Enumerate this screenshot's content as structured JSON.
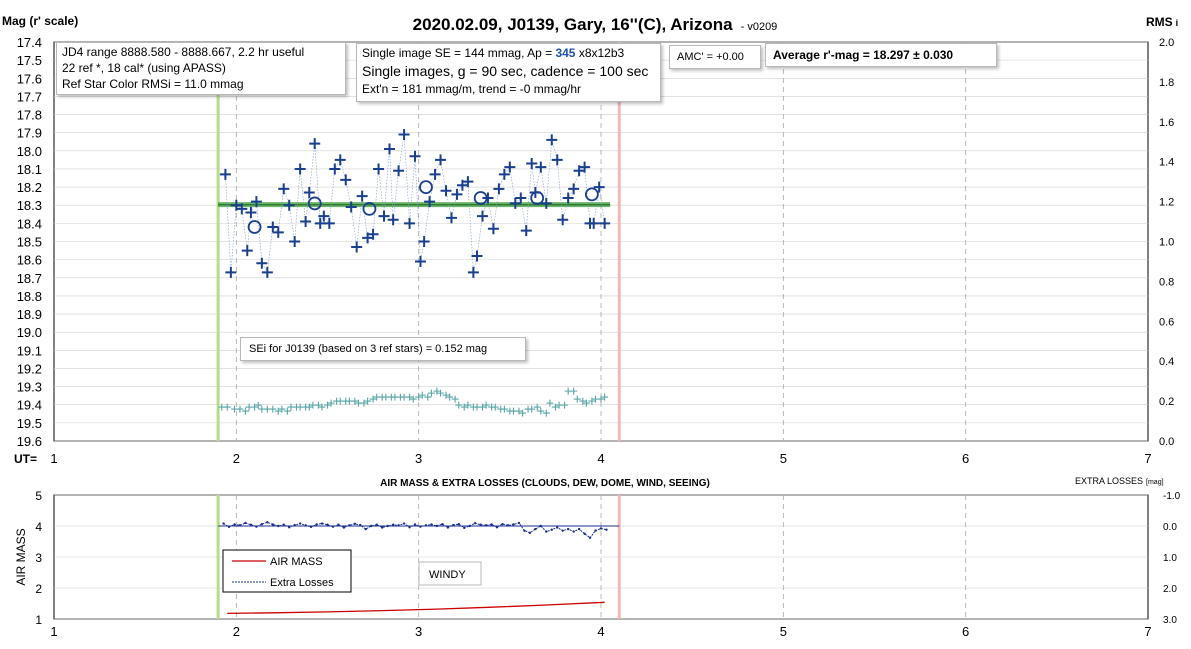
{
  "title": "2020.02.09, J0139, Gary, 16''(C), Arizona",
  "version": "- v0209",
  "left_axis_title": "Mag (r' scale)",
  "right_axis_title": "RMS",
  "right_axis_title_sub": "i",
  "ut_label": "UT=",
  "colors": {
    "mag_marker": "#1a3f8f",
    "avg_line": "#3a9a3a",
    "rms_marker": "#5aa6a8",
    "start_line": "#b8dc8c",
    "end_line": "#f4b6b6",
    "airmass_line": "#cc0000",
    "extra_loss_line": "#1a2f8f"
  },
  "info_boxes": {
    "jd_range": "JD4 range 8888.580 - 8888.667, 2.2 hr useful",
    "refs": "22 ref *, 18 cal* (using APASS)",
    "ref_color_rms": "Ref Star Color RMSi = 11.0 mmag",
    "se_prefix": "Single image SE = 144 mmag, Ap = ",
    "ap_value": "345",
    "ap_suffix": " x8x12b3",
    "single_images": "Single images, g = 90 sec, cadence = 100 sec",
    "extn": "Ext'n = 181 mmag/m, trend = -0 mmag/hr",
    "amc": "AMC' = +0.00",
    "average": "Average r'-mag =  18.297 ± 0.030",
    "sei": "SEi for J0139 (based on 3 ref stars) = 0.152 mag"
  },
  "bottom_panel": {
    "title": "AIR MASS & EXTRA LOSSES (CLOUDS, DEW, DOME, WIND, SEEING)",
    "left_axis_title": "AIR MASS",
    "right_axis_title": "EXTRA LOSSES",
    "right_axis_unit": "[mag]",
    "legend_airmass": "AIR MASS",
    "legend_extra": "Extra Losses",
    "windy": "WINDY"
  },
  "chart_data": [
    {
      "type": "scatter",
      "xlim": [
        1,
        7
      ],
      "ylim_left": [
        17.4,
        19.6
      ],
      "ylim_right": [
        0.0,
        2.0
      ],
      "x_ticks": [
        "1",
        "2",
        "3",
        "4",
        "5",
        "6",
        "7"
      ],
      "y_ticks_left": [
        "17.4",
        "17.5",
        "17.6",
        "17.7",
        "17.8",
        "17.9",
        "18.0",
        "18.1",
        "18.2",
        "18.3",
        "18.4",
        "18.5",
        "18.6",
        "18.7",
        "18.8",
        "18.9",
        "19.0",
        "19.1",
        "19.2",
        "19.3",
        "19.4",
        "19.5",
        "19.6"
      ],
      "y_ticks_right": [
        "2.0",
        "1.8",
        "1.6",
        "1.4",
        "1.2",
        "1.0",
        "0.8",
        "0.6",
        "0.4",
        "0.2",
        "0.0"
      ],
      "grid": true,
      "start_ut": 1.9,
      "end_ut": 4.1,
      "average_mag": 18.297,
      "average_ut_range": [
        1.9,
        4.05
      ],
      "single_mags": {
        "x": [
          1.94,
          1.97,
          2.0,
          2.03,
          2.06,
          2.08,
          2.11,
          2.14,
          2.17,
          2.2,
          2.23,
          2.26,
          2.29,
          2.32,
          2.35,
          2.38,
          2.4,
          2.43,
          2.46,
          2.48,
          2.51,
          2.54,
          2.57,
          2.6,
          2.63,
          2.66,
          2.69,
          2.72,
          2.75,
          2.78,
          2.81,
          2.84,
          2.86,
          2.89,
          2.92,
          2.95,
          2.98,
          3.01,
          3.03,
          3.06,
          3.09,
          3.12,
          3.15,
          3.18,
          3.21,
          3.24,
          3.27,
          3.3,
          3.32,
          3.35,
          3.38,
          3.41,
          3.44,
          3.47,
          3.5,
          3.53,
          3.56,
          3.59,
          3.62,
          3.64,
          3.67,
          3.7,
          3.73,
          3.76,
          3.79,
          3.82,
          3.85,
          3.88,
          3.91,
          3.94,
          3.96,
          3.99,
          4.02
        ],
        "mag": [
          18.13,
          18.67,
          18.3,
          18.32,
          18.55,
          18.34,
          18.28,
          18.62,
          18.67,
          18.42,
          18.45,
          18.21,
          18.3,
          18.5,
          18.1,
          18.39,
          18.23,
          17.96,
          18.4,
          18.36,
          18.4,
          18.1,
          18.05,
          18.16,
          18.31,
          18.53,
          18.25,
          18.48,
          18.46,
          18.1,
          18.36,
          17.99,
          18.38,
          18.11,
          17.91,
          18.4,
          18.03,
          18.61,
          18.5,
          18.28,
          18.13,
          18.05,
          18.22,
          18.37,
          18.24,
          18.19,
          18.17,
          18.67,
          18.58,
          18.36,
          18.26,
          18.43,
          18.21,
          18.13,
          18.09,
          18.29,
          18.26,
          18.44,
          18.07,
          18.23,
          18.09,
          18.29,
          17.94,
          18.05,
          18.38,
          18.26,
          18.21,
          18.11,
          18.09,
          18.4,
          18.4,
          18.2,
          18.4
        ]
      },
      "group_means": {
        "x": [
          2.1,
          2.43,
          2.73,
          3.04,
          3.34,
          3.65,
          3.95
        ],
        "mag": [
          18.42,
          18.29,
          18.32,
          18.2,
          18.26,
          18.26,
          18.24
        ]
      },
      "rms_i": {
        "x": [
          1.92,
          1.95,
          1.99,
          2.02,
          2.05,
          2.07,
          2.1,
          2.12,
          2.14,
          2.17,
          2.2,
          2.23,
          2.25,
          2.28,
          2.3,
          2.33,
          2.35,
          2.38,
          2.4,
          2.42,
          2.45,
          2.47,
          2.5,
          2.52,
          2.55,
          2.57,
          2.6,
          2.62,
          2.65,
          2.67,
          2.7,
          2.72,
          2.75,
          2.77,
          2.8,
          2.82,
          2.85,
          2.87,
          2.9,
          2.92,
          2.95,
          2.97,
          3.0,
          3.02,
          3.05,
          3.07,
          3.1,
          3.12,
          3.15,
          3.17,
          3.2,
          3.22,
          3.25,
          3.27,
          3.3,
          3.32,
          3.35,
          3.37,
          3.4,
          3.42,
          3.45,
          3.47,
          3.5,
          3.52,
          3.55,
          3.57,
          3.6,
          3.62,
          3.65,
          3.67,
          3.7,
          3.72,
          3.75,
          3.77,
          3.8,
          3.82,
          3.85,
          3.87,
          3.9,
          3.92,
          3.95,
          3.97,
          4.0,
          4.02
        ],
        "rms": [
          0.17,
          0.17,
          0.16,
          0.16,
          0.15,
          0.17,
          0.17,
          0.18,
          0.16,
          0.16,
          0.16,
          0.15,
          0.16,
          0.15,
          0.17,
          0.17,
          0.17,
          0.17,
          0.17,
          0.18,
          0.18,
          0.17,
          0.18,
          0.19,
          0.2,
          0.2,
          0.2,
          0.2,
          0.2,
          0.19,
          0.19,
          0.2,
          0.21,
          0.22,
          0.22,
          0.22,
          0.22,
          0.22,
          0.22,
          0.22,
          0.22,
          0.21,
          0.22,
          0.23,
          0.22,
          0.24,
          0.25,
          0.24,
          0.23,
          0.22,
          0.21,
          0.18,
          0.17,
          0.18,
          0.17,
          0.17,
          0.17,
          0.18,
          0.17,
          0.17,
          0.16,
          0.16,
          0.15,
          0.15,
          0.15,
          0.14,
          0.16,
          0.16,
          0.17,
          0.15,
          0.14,
          0.19,
          0.17,
          0.18,
          0.18,
          0.25,
          0.25,
          0.21,
          0.2,
          0.19,
          0.2,
          0.21,
          0.21,
          0.22
        ]
      }
    },
    {
      "type": "line",
      "xlim": [
        1,
        7
      ],
      "ylim_left": [
        1,
        5
      ],
      "ylim_right": [
        3.0,
        -1.0
      ],
      "x_ticks": [
        "1",
        "2",
        "3",
        "4",
        "5",
        "6",
        "7"
      ],
      "y_ticks_left": [
        "5",
        "4",
        "3",
        "2",
        "1"
      ],
      "y_ticks_right": [
        "-1.0",
        "0.0",
        "1.0",
        "2.0",
        "3.0"
      ],
      "grid": true,
      "series": [
        {
          "name": "AIR MASS",
          "x": [
            1.95,
            2.2,
            2.5,
            2.8,
            3.1,
            3.4,
            3.7,
            4.02
          ],
          "values": [
            1.18,
            1.2,
            1.23,
            1.27,
            1.32,
            1.38,
            1.45,
            1.54
          ]
        },
        {
          "name": "Extra Losses",
          "x": [
            1.93,
            1.96,
            1.99,
            2.02,
            2.05,
            2.08,
            2.11,
            2.14,
            2.17,
            2.2,
            2.23,
            2.26,
            2.29,
            2.32,
            2.35,
            2.38,
            2.41,
            2.44,
            2.47,
            2.5,
            2.53,
            2.56,
            2.59,
            2.62,
            2.65,
            2.68,
            2.71,
            2.74,
            2.77,
            2.8,
            2.83,
            2.86,
            2.89,
            2.92,
            2.95,
            2.98,
            3.01,
            3.04,
            3.07,
            3.1,
            3.13,
            3.16,
            3.19,
            3.22,
            3.25,
            3.28,
            3.31,
            3.34,
            3.37,
            3.4,
            3.43,
            3.46,
            3.49,
            3.52,
            3.55,
            3.58,
            3.61,
            3.64,
            3.67,
            3.7,
            3.73,
            3.76,
            3.79,
            3.82,
            3.85,
            3.88,
            3.91,
            3.94,
            3.97,
            4.0,
            4.03
          ],
          "values": [
            -0.08,
            0.03,
            -0.05,
            -0.02,
            -0.1,
            -0.04,
            0.02,
            -0.06,
            -0.12,
            -0.05,
            0.0,
            -0.04,
            0.04,
            -0.03,
            -0.08,
            -0.02,
            0.03,
            -0.05,
            -0.08,
            -0.04,
            0.02,
            -0.04,
            0.05,
            -0.02,
            -0.07,
            -0.03,
            0.1,
            0.0,
            -0.04,
            0.05,
            0.0,
            -0.04,
            -0.02,
            -0.08,
            0.04,
            -0.05,
            0.02,
            -0.02,
            -0.05,
            0.0,
            -0.06,
            0.05,
            -0.03,
            -0.06,
            0.06,
            0.0,
            -0.09,
            -0.04,
            -0.02,
            -0.05,
            0.04,
            -0.06,
            -0.02,
            -0.05,
            -0.1,
            0.15,
            0.22,
            0.1,
            0.0,
            0.18,
            0.12,
            0.05,
            0.15,
            0.1,
            0.18,
            0.1,
            0.25,
            0.38,
            0.15,
            0.08,
            0.12
          ]
        },
        {
          "name": "",
          "x": [
            1.9,
            4.1
          ],
          "values": [
            0.0,
            0.0
          ]
        }
      ],
      "start_ut": 1.9,
      "end_ut": 4.1
    }
  ]
}
